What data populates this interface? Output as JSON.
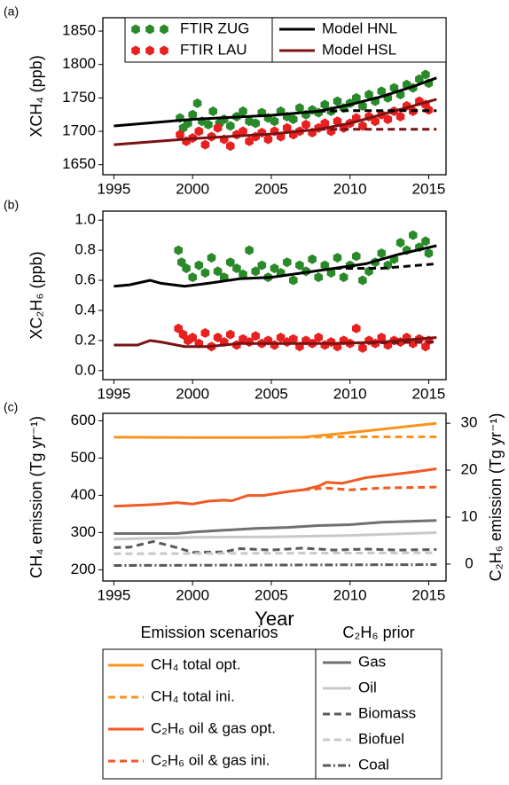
{
  "chart_data": [
    {
      "type": "scatter",
      "panel_label": "(a)",
      "ylabel": "XCH₄ (ppb)",
      "xlim": [
        1994.3,
        2016.1
      ],
      "xticks": [
        1995,
        2000,
        2005,
        2010,
        2015
      ],
      "ylim": [
        1635,
        1870
      ],
      "yticks": [
        1650,
        1700,
        1750,
        1800,
        1850
      ],
      "legend": "top",
      "series": [
        {
          "name": "FTIR ZUG",
          "color": "#2a8a2a",
          "marker": "hexagon",
          "x": [
            1999.2,
            1999.4,
            1999.7,
            2000.0,
            2000.3,
            2000.6,
            2001.0,
            2001.3,
            2001.7,
            2002.0,
            2002.4,
            2002.8,
            2003.2,
            2003.6,
            2004.0,
            2004.4,
            2004.8,
            2005.2,
            2005.6,
            2006.0,
            2006.4,
            2006.8,
            2007.2,
            2007.6,
            2008.0,
            2008.4,
            2008.8,
            2009.2,
            2009.6,
            2010.0,
            2010.4,
            2010.8,
            2011.2,
            2011.6,
            2012.0,
            2012.4,
            2012.8,
            2013.2,
            2013.6,
            2014.0,
            2014.4,
            2014.8,
            2015.0
          ],
          "values": [
            1720,
            1705,
            1712,
            1725,
            1742,
            1715,
            1710,
            1730,
            1712,
            1718,
            1708,
            1722,
            1730,
            1715,
            1712,
            1728,
            1720,
            1715,
            1730,
            1722,
            1718,
            1735,
            1725,
            1732,
            1728,
            1740,
            1730,
            1745,
            1735,
            1742,
            1750,
            1738,
            1755,
            1745,
            1760,
            1750,
            1765,
            1755,
            1770,
            1765,
            1778,
            1785,
            1772
          ]
        },
        {
          "name": "FTIR LAU",
          "color": "#e82020",
          "marker": "hexagon",
          "x": [
            1999.2,
            1999.6,
            2000.0,
            2000.4,
            2000.8,
            2001.2,
            2001.6,
            2002.0,
            2002.4,
            2002.8,
            2003.2,
            2003.6,
            2004.0,
            2004.4,
            2004.8,
            2005.2,
            2005.6,
            2006.0,
            2006.4,
            2006.8,
            2007.2,
            2007.6,
            2008.0,
            2008.4,
            2008.8,
            2009.2,
            2009.6,
            2010.0,
            2010.4,
            2010.8,
            2011.2,
            2011.6,
            2012.0,
            2012.4,
            2012.8,
            2013.2,
            2013.6,
            2014.0,
            2014.4,
            2014.8,
            2015.0
          ],
          "values": [
            1695,
            1685,
            1690,
            1700,
            1680,
            1692,
            1705,
            1688,
            1678,
            1695,
            1700,
            1685,
            1692,
            1698,
            1688,
            1700,
            1692,
            1705,
            1695,
            1700,
            1710,
            1698,
            1705,
            1712,
            1700,
            1715,
            1705,
            1712,
            1720,
            1708,
            1722,
            1715,
            1725,
            1718,
            1730,
            1722,
            1738,
            1730,
            1745,
            1740,
            1732
          ]
        },
        {
          "name": "Model HNL",
          "color": "#000000",
          "dash": "solid",
          "x": [
            1995,
            2000,
            2005,
            2008,
            2010,
            2012,
            2014,
            2015.5
          ],
          "values": [
            1708,
            1718,
            1724,
            1730,
            1740,
            1752,
            1767,
            1780
          ]
        },
        {
          "name": "Model HSL",
          "color": "#7a1212",
          "dash": "solid",
          "x": [
            1995,
            2000,
            2005,
            2008,
            2010,
            2012,
            2014,
            2015.5
          ],
          "values": [
            1680,
            1689,
            1696,
            1703,
            1712,
            1725,
            1738,
            1748
          ]
        },
        {
          "color": "#000000",
          "dash": "dashed",
          "x": [
            2008,
            2010,
            2012,
            2015.5
          ],
          "values": [
            1730,
            1731,
            1731,
            1731
          ]
        },
        {
          "color": "#7a1212",
          "dash": "dashed",
          "x": [
            2008,
            2011,
            2015.5
          ],
          "values": [
            1703,
            1703,
            1703
          ]
        }
      ]
    },
    {
      "type": "scatter",
      "panel_label": "(b)",
      "ylabel": "XC₂H₆ (ppb)",
      "xlim": [
        1994.3,
        2016.1
      ],
      "xticks": [
        1995,
        2000,
        2005,
        2010,
        2015
      ],
      "ylim": [
        -0.06,
        1.06
      ],
      "yticks": [
        {
          "value": 0,
          "label": "0.0"
        },
        0.2,
        0.4,
        0.6,
        0.8,
        {
          "value": 1,
          "label": "1.0"
        }
      ],
      "series": [
        {
          "color": "#2a8a2a",
          "marker": "hexagon",
          "x": [
            1999.1,
            1999.3,
            1999.6,
            2000.0,
            2000.4,
            2000.8,
            2001.2,
            2001.6,
            2002.0,
            2002.4,
            2002.8,
            2003.2,
            2003.6,
            2004.0,
            2004.4,
            2004.8,
            2005.2,
            2005.6,
            2006.0,
            2006.4,
            2006.8,
            2007.2,
            2007.6,
            2008.0,
            2008.4,
            2008.8,
            2009.2,
            2009.6,
            2010.0,
            2010.4,
            2010.8,
            2011.2,
            2011.6,
            2012.0,
            2012.4,
            2012.8,
            2013.2,
            2013.6,
            2014.0,
            2014.4,
            2014.8,
            2015.0
          ],
          "values": [
            0.8,
            0.72,
            0.68,
            0.62,
            0.7,
            0.65,
            0.75,
            0.66,
            0.62,
            0.72,
            0.68,
            0.64,
            0.8,
            0.66,
            0.7,
            0.62,
            0.68,
            0.65,
            0.72,
            0.6,
            0.7,
            0.66,
            0.74,
            0.62,
            0.7,
            0.65,
            0.75,
            0.62,
            0.7,
            0.76,
            0.6,
            0.66,
            0.72,
            0.78,
            0.7,
            0.74,
            0.85,
            0.8,
            0.9,
            0.82,
            0.86,
            0.78
          ]
        },
        {
          "color": "#e82020",
          "marker": "hexagon",
          "x": [
            1999.1,
            1999.4,
            1999.7,
            2000.0,
            2000.4,
            2000.8,
            2001.2,
            2001.6,
            2002.0,
            2002.4,
            2002.8,
            2003.2,
            2003.6,
            2004.0,
            2004.4,
            2004.8,
            2005.2,
            2005.6,
            2006.0,
            2006.4,
            2006.8,
            2007.2,
            2007.6,
            2008.0,
            2008.4,
            2008.8,
            2009.2,
            2009.6,
            2010.0,
            2010.4,
            2010.8,
            2011.2,
            2011.6,
            2012.0,
            2012.4,
            2012.8,
            2013.2,
            2013.6,
            2014.0,
            2014.4,
            2014.8,
            2015.0
          ],
          "values": [
            0.28,
            0.24,
            0.2,
            0.22,
            0.18,
            0.25,
            0.16,
            0.22,
            0.19,
            0.24,
            0.17,
            0.21,
            0.19,
            0.23,
            0.18,
            0.2,
            0.17,
            0.22,
            0.19,
            0.21,
            0.16,
            0.2,
            0.18,
            0.22,
            0.17,
            0.19,
            0.16,
            0.2,
            0.18,
            0.28,
            0.15,
            0.2,
            0.18,
            0.22,
            0.17,
            0.2,
            0.19,
            0.22,
            0.18,
            0.21,
            0.16,
            0.2
          ]
        },
        {
          "color": "#000000",
          "dash": "solid",
          "x": [
            1995,
            1996,
            1997.3,
            1998,
            1999.5,
            2001,
            2003,
            2005,
            2007,
            2009,
            2011,
            2013,
            2015.5
          ],
          "values": [
            0.56,
            0.57,
            0.6,
            0.58,
            0.56,
            0.58,
            0.61,
            0.62,
            0.65,
            0.68,
            0.71,
            0.77,
            0.83
          ]
        },
        {
          "color": "#7a1212",
          "dash": "solid",
          "x": [
            1995,
            1996.5,
            1997.3,
            1998,
            1999.5,
            2001,
            2003,
            2005,
            2009,
            2012,
            2015.5
          ],
          "values": [
            0.17,
            0.17,
            0.2,
            0.19,
            0.16,
            0.16,
            0.18,
            0.18,
            0.18,
            0.19,
            0.22
          ]
        },
        {
          "color": "#000000",
          "dash": "dashed",
          "x": [
            2009,
            2012,
            2015.5
          ],
          "values": [
            0.68,
            0.68,
            0.71
          ]
        },
        {
          "color": "#7a1212",
          "dash": "dashed",
          "x": [
            2009,
            2015.5
          ],
          "values": [
            0.18,
            0.19
          ]
        }
      ]
    },
    {
      "type": "line",
      "panel_label": "(c)",
      "xlabel": "Year",
      "ylabel": "CH₄ emission (Tg yr⁻¹)",
      "y2label": "C₂H₆ emission (Tg yr⁻¹)",
      "xlim": [
        1994.3,
        2016.1
      ],
      "xticks": [
        1995,
        2000,
        2005,
        2010,
        2015
      ],
      "ylim": [
        170,
        620
      ],
      "yticks": [
        200,
        300,
        400,
        500,
        600
      ],
      "y2lim": [
        -3.6,
        32.1
      ],
      "y2ticks": [
        0,
        10,
        20,
        30
      ],
      "legend": "below",
      "legend_titles": [
        "Emission scenarios",
        "C₂H₆ prior"
      ],
      "series": [
        {
          "name": "CH₄ total opt.",
          "color": "#f7941d",
          "dash": "solid",
          "legend_column": 0,
          "x": [
            1995,
            2000,
            2005,
            2007,
            2010,
            2015.5
          ],
          "values": [
            556,
            555,
            555,
            556,
            568,
            593
          ]
        },
        {
          "name": "CH₄ total ini.",
          "color": "#f7941d",
          "dash": "dashed",
          "legend_column": 0,
          "x": [
            2007,
            2010,
            2015.5
          ],
          "values": [
            556,
            557,
            557
          ]
        },
        {
          "name": "C₂H₆ oil & gas opt.",
          "color": "#f15a22",
          "dash": "solid",
          "axis": "y2",
          "legend_column": 0,
          "x": [
            1995,
            1997,
            1998,
            1999,
            2000,
            2001,
            2002,
            2002.5,
            2003.5,
            2004.5,
            2006,
            2007,
            2008,
            2008.5,
            2009.5,
            2011,
            2012.5,
            2014,
            2015.5
          ],
          "values": [
            12.3,
            12.6,
            12.8,
            13.1,
            12.8,
            13.4,
            13.6,
            13.5,
            14.6,
            14.6,
            15.4,
            15.8,
            16.6,
            17.4,
            17.2,
            18.4,
            19.0,
            19.6,
            20.3
          ]
        },
        {
          "name": "C₂H₆ oil & gas ini.",
          "color": "#f15a22",
          "dash": "dashed",
          "axis": "y2",
          "legend_column": 0,
          "x": [
            2007,
            2008.5,
            2010,
            2012,
            2015.5
          ],
          "values": [
            15.8,
            16.2,
            15.8,
            16.2,
            16.4
          ]
        },
        {
          "name": "Gas",
          "color": "#707070",
          "dash": "solid",
          "axis": "y2",
          "legend_column": 1,
          "x": [
            1995,
            1999,
            2000,
            2002,
            2004,
            2006,
            2008,
            2010,
            2012,
            2015.5
          ],
          "values": [
            6.5,
            6.5,
            6.8,
            7.2,
            7.6,
            7.8,
            8.2,
            8.4,
            8.9,
            9.3
          ]
        },
        {
          "name": "Oil",
          "color": "#c8c8c8",
          "dash": "solid",
          "axis": "y2",
          "legend_column": 1,
          "x": [
            1995,
            2000,
            2005,
            2010,
            2015.5
          ],
          "values": [
            5.3,
            5.7,
            5.8,
            6.1,
            6.7
          ]
        },
        {
          "name": "Biomass",
          "color": "#5a5a5a",
          "dash": "dashed",
          "axis": "y2",
          "legend_column": 1,
          "x": [
            1995,
            1996,
            1997.5,
            1999,
            2000,
            2002,
            2003,
            2005,
            2007,
            2009,
            2011,
            2013,
            2015.5
          ],
          "values": [
            3.5,
            3.6,
            4.8,
            3.5,
            2.5,
            2.6,
            3.3,
            3.0,
            3.4,
            3.0,
            3.2,
            3.0,
            3.1
          ]
        },
        {
          "name": "Biofuel",
          "color": "#c8c8c8",
          "dash": "dashed",
          "axis": "y2",
          "legend_column": 1,
          "x": [
            1995,
            2015.5
          ],
          "values": [
            2.2,
            2.4
          ]
        },
        {
          "name": "Coal",
          "color": "#5a5a5a",
          "dash": "dashdot",
          "axis": "y2",
          "legend_column": 1,
          "x": [
            1995,
            2015.5
          ],
          "values": [
            -0.3,
            -0.1
          ]
        }
      ]
    }
  ]
}
